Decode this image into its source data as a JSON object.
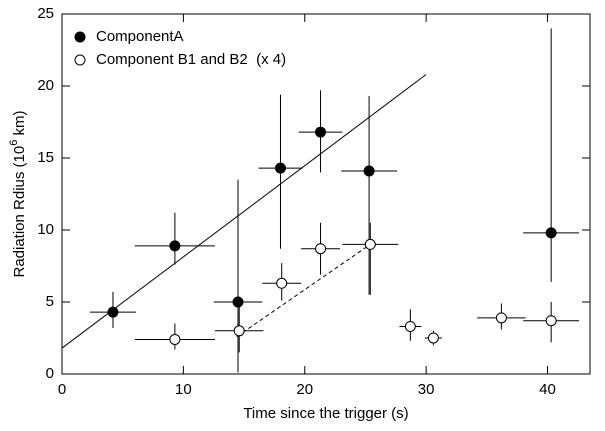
{
  "chart_data": {
    "type": "scatter",
    "xlabel": "Time since the trigger (s)",
    "ylabel": "Radiation Rdius (10",
    "ylabel_sup": "6",
    "ylabel_end": " km)",
    "xlim": [
      0,
      43.5
    ],
    "ylim": [
      0,
      25
    ],
    "xticks": [
      0,
      10,
      20,
      30,
      40
    ],
    "yticks": [
      0,
      5,
      10,
      15,
      20,
      25
    ],
    "color": "#000000",
    "series": [
      {
        "name": "ComponentA",
        "filled": true,
        "x": [
          4.2,
          9.3,
          14.5,
          18.0,
          21.3,
          25.3,
          40.3
        ],
        "values": [
          4.3,
          8.9,
          5.0,
          14.3,
          16.8,
          14.1,
          9.8
        ],
        "xerr": [
          1.9,
          3.3,
          2.0,
          1.8,
          1.8,
          2.3,
          2.3
        ],
        "yerr_plus": [
          1.4,
          2.3,
          8.5,
          5.1,
          2.9,
          5.2,
          14.2
        ],
        "yerr_minus": [
          1.1,
          1.3,
          4.9,
          5.6,
          2.8,
          8.6,
          3.4
        ]
      },
      {
        "name": "Component B1 and B2  (x 4)",
        "filled": false,
        "x": [
          9.3,
          14.6,
          18.1,
          21.3,
          25.4,
          28.7,
          30.6,
          36.2,
          40.3
        ],
        "values": [
          2.4,
          3.0,
          6.3,
          8.7,
          9.0,
          3.3,
          2.5,
          3.9,
          3.7
        ],
        "xerr": [
          3.3,
          2.0,
          1.6,
          1.6,
          2.3,
          0.9,
          0.7,
          2.0,
          2.3
        ],
        "yerr_plus": [
          1.1,
          1.8,
          1.4,
          1.8,
          1.5,
          1.2,
          0.5,
          1.0,
          1.3
        ],
        "yerr_minus": [
          0.7,
          1.5,
          1.2,
          1.8,
          3.5,
          1.0,
          0.5,
          0.8,
          1.5
        ]
      }
    ],
    "fits": [
      {
        "x": [
          0,
          30
        ],
        "values": [
          1.8,
          20.8
        ],
        "dashed": false
      },
      {
        "x": [
          14.4,
          25.4
        ],
        "values": [
          2.6,
          9.0
        ],
        "dashed": true
      }
    ]
  }
}
